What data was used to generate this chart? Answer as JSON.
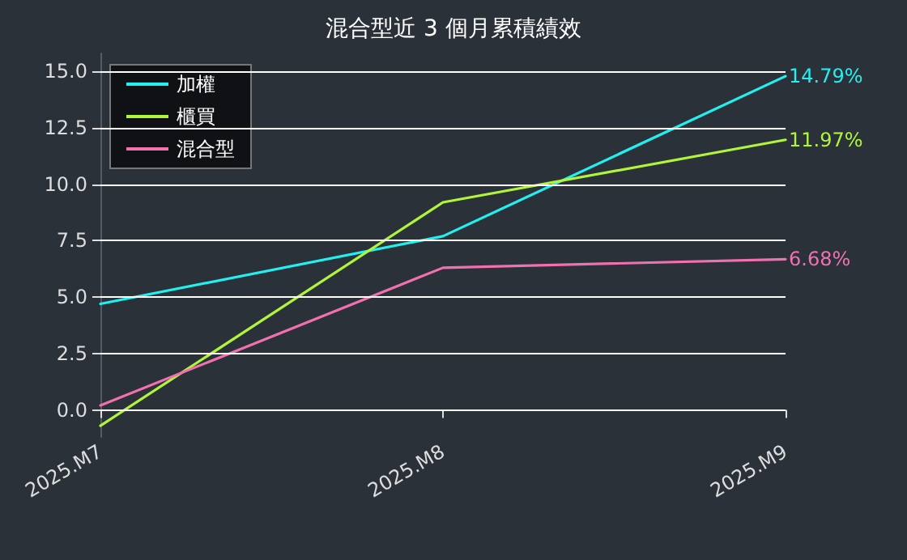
{
  "chart_data": {
    "type": "line",
    "title": "混合型近 3 個月累積績效",
    "categories": [
      "2025.M7",
      "2025.M8",
      "2025.M9"
    ],
    "series": [
      {
        "name": "加權",
        "color": "#22f0f0",
        "values": [
          4.7,
          7.7,
          14.79
        ],
        "value_labels": [
          null,
          null,
          "14.79%"
        ]
      },
      {
        "name": "櫃買",
        "color": "#b0f53a",
        "values": [
          -0.7,
          9.2,
          11.97
        ],
        "value_labels": [
          null,
          null,
          "11.97%"
        ]
      },
      {
        "name": "混合型",
        "color": "#f070b0",
        "values": [
          0.2,
          6.3,
          6.68
        ],
        "value_labels": [
          null,
          null,
          "6.68%"
        ]
      }
    ],
    "ylim": [
      -1.2,
      15.8
    ],
    "yticks": [
      {
        "value": 0,
        "label": "0.0"
      },
      {
        "value": 2.5,
        "label": "2.5"
      },
      {
        "value": 5,
        "label": "5.0"
      },
      {
        "value": 7.5,
        "label": "7.5"
      },
      {
        "value": 10,
        "label": "10.0"
      },
      {
        "value": 12.5,
        "label": "12.5"
      },
      {
        "value": 15,
        "label": "15.0"
      }
    ],
    "grid": "y",
    "legend": "top left",
    "marker": "none",
    "line_style": "solid"
  }
}
